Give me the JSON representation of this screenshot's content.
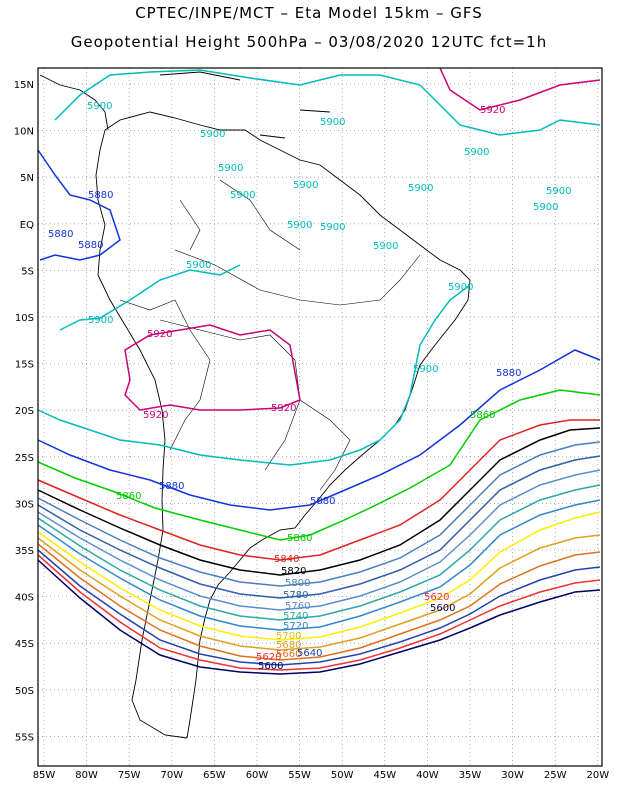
{
  "header": {
    "line1": "CPTEC/INPE/MCT –  Eta Model 15km – GFS",
    "line2": "Geopotential Height 500hPa – 03/08/2020 12UTC fct=1h"
  },
  "axes": {
    "lat_labels": [
      "15N",
      "10N",
      "5N",
      "EQ",
      "5S",
      "10S",
      "15S",
      "20S",
      "25S",
      "30S",
      "35S",
      "40S",
      "45S",
      "50S",
      "55S"
    ],
    "lon_labels": [
      "85W",
      "80W",
      "75W",
      "70W",
      "65W",
      "60W",
      "55W",
      "50W",
      "45W",
      "40W",
      "35W",
      "30W",
      "25W",
      "20W"
    ]
  },
  "contours": [
    {
      "label": "5920",
      "color": "#cc0077"
    },
    {
      "label": "5900",
      "color": "#00bbbb"
    },
    {
      "label": "5880",
      "color": "#1133dd"
    },
    {
      "label": "5860",
      "color": "#00cc00"
    },
    {
      "label": "5840",
      "color": "#dd2222"
    },
    {
      "label": "5820",
      "color": "#000000"
    },
    {
      "label": "5800",
      "color": "#4a7fbf"
    },
    {
      "label": "5780",
      "color": "#2f5fa8"
    },
    {
      "label": "5760",
      "color": "#5a8fcf"
    },
    {
      "label": "5740",
      "color": "#2da8a8"
    },
    {
      "label": "5720",
      "color": "#3388cc"
    },
    {
      "label": "5700",
      "color": "#ffee00"
    },
    {
      "label": "5680",
      "color": "#e0a020"
    },
    {
      "label": "5660",
      "color": "#e07020"
    },
    {
      "label": "5640",
      "color": "#2244aa"
    },
    {
      "label": "5620",
      "color": "#ee3333"
    },
    {
      "label": "5600",
      "color": "#000066"
    }
  ],
  "labels": {
    "l5920a": "5920",
    "l5920b": "5920",
    "l5920c": "5920",
    "l5920d": "5920",
    "l5900a": "5900",
    "l5900b": "5900",
    "l5900c": "5900",
    "l5900d": "5900",
    "l5900e": "5900",
    "l5900f": "5900",
    "l5900g": "5900",
    "l5900h": "5900",
    "l5900i": "5900",
    "l5900j": "5900",
    "l5900k": "5900",
    "l5900l": "5900",
    "l5900m": "5900",
    "l5900n": "5900",
    "l5900o": "5900",
    "l5900p": "5900",
    "l5900q": "5900",
    "l5880a": "5880",
    "l5880b": "5880",
    "l5880c": "5880",
    "l5880d": "5880",
    "l5880e": "5880",
    "l5880f": "5880",
    "l5860a": "5860",
    "l5860b": "5860",
    "l5860c": "5860",
    "l5840": "5840",
    "l5820": "5820",
    "l5800": "5800",
    "l5780": "5780",
    "l5760": "5760",
    "l5740": "5740",
    "l5720": "5720",
    "l5700": "5700",
    "l5680": "5680",
    "l5660": "5660",
    "l5640": "5640",
    "l5620a": "5620",
    "l5620b": "5620",
    "l5600a": "5600",
    "l5600b": "5600"
  }
}
